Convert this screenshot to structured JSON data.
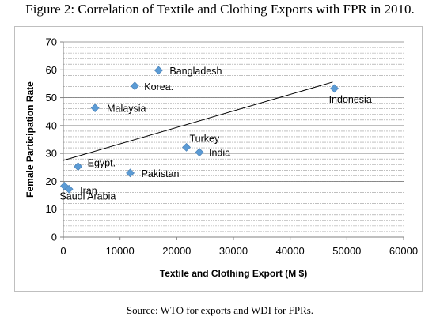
{
  "figure": {
    "title": "Figure 2: Correlation of Textile and Clothing Exports with FPR in 2010.",
    "source": "Source: WTO for exports and WDI for FPRs."
  },
  "chart_data": {
    "type": "scatter",
    "title": "",
    "xlabel": "Textile and Clothing Export (M $)",
    "ylabel": "Female Participation Rate",
    "xlim": [
      0,
      60000
    ],
    "ylim": [
      0,
      70
    ],
    "xticks": [
      0,
      10000,
      20000,
      30000,
      40000,
      50000,
      60000
    ],
    "yticks": [
      0,
      10,
      20,
      30,
      40,
      50,
      60,
      70
    ],
    "grid": "horizontal",
    "legend": "none",
    "marker_color": "#5b9bd5",
    "points": [
      {
        "label": "Bangladesh",
        "x": 16800,
        "y": 59.8
      },
      {
        "label": "Korea.",
        "x": 12600,
        "y": 54.2
      },
      {
        "label": "Malaysia",
        "x": 5600,
        "y": 46.3
      },
      {
        "label": "Indonesia",
        "x": 47800,
        "y": 53.3
      },
      {
        "label": "Turkey",
        "x": 21700,
        "y": 32.2
      },
      {
        "label": "India",
        "x": 24000,
        "y": 30.4
      },
      {
        "label": "Egypt.",
        "x": 2600,
        "y": 25.3
      },
      {
        "label": "Pakistan",
        "x": 11800,
        "y": 23.0
      },
      {
        "label": "Saudi  Arabia",
        "x": 200,
        "y": 18.3
      },
      {
        "label": "Iran",
        "x": 1000,
        "y": 17.2
      }
    ],
    "trendline": {
      "x": [
        0,
        47500
      ],
      "y": [
        27.5,
        55.6
      ]
    }
  }
}
